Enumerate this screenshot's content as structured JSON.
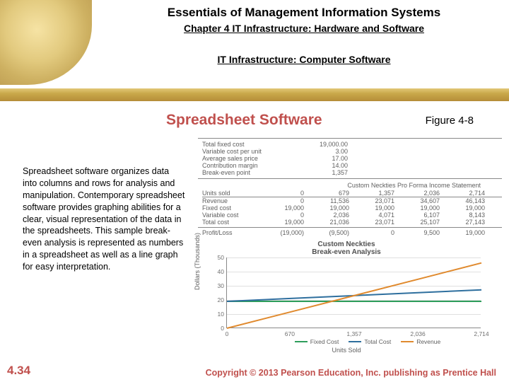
{
  "header": {
    "book_title": "Essentials of Management Information Systems",
    "chapter_line": "Chapter 4 IT Infrastructure: Hardware and Software",
    "section_line": "IT Infrastructure: Computer Software"
  },
  "slide": {
    "title": "Spreadsheet Software",
    "figure_label": "Figure 4-8",
    "body": "Spreadsheet software organizes data into columns and rows for analysis and manipulation. Contemporary spreadsheet software provides graphing abilities for a clear, visual representation of the data in the spreadsheets. This sample break-even analysis is represented as numbers in a spreadsheet as well as a line graph for easy interpretation.",
    "slide_number": "4.34",
    "copyright": "Copyright © 2013 Pearson Education, Inc. publishing as Prentice Hall"
  },
  "spreadsheet": {
    "assumptions": [
      {
        "label": "Total fixed cost",
        "value": "19,000.00"
      },
      {
        "label": "Variable cost per unit",
        "value": "3.00"
      },
      {
        "label": "Average sales price",
        "value": "17.00"
      },
      {
        "label": "Contribution margin",
        "value": "14.00"
      },
      {
        "label": "Break-even point",
        "value": "1,357"
      }
    ],
    "statement_title": "Custom Neckties Pro Forma Income Statement",
    "income_header": {
      "label": "Units sold",
      "cols": [
        "0",
        "679",
        "1,357",
        "2,036",
        "2,714"
      ]
    },
    "income_rows": [
      {
        "label": "Revenue",
        "cols": [
          "0",
          "11,536",
          "23,071",
          "34,607",
          "46,143"
        ]
      },
      {
        "label": "Fixed cost",
        "cols": [
          "19,000",
          "19,000",
          "19,000",
          "19,000",
          "19,000"
        ]
      },
      {
        "label": "Variable cost",
        "cols": [
          "0",
          "2,036",
          "4,071",
          "6,107",
          "8,143"
        ]
      },
      {
        "label": "Total cost",
        "cols": [
          "19,000",
          "21,036",
          "23,071",
          "25,107",
          "27,143"
        ]
      }
    ],
    "profit_row": {
      "label": "Profit/Loss",
      "cols": [
        "(19,000)",
        "(9,500)",
        "0",
        "9,500",
        "19,000"
      ]
    }
  },
  "chart": {
    "type": "line",
    "title": "Custom Neckties\nBreak-even Analysis",
    "xlabel": "Units Sold",
    "ylabel": "Dollars (Thousands)",
    "xlim": [
      0,
      2714
    ],
    "ylim": [
      0,
      50
    ],
    "ytick_step": 10,
    "xticks": [
      0,
      670,
      1357,
      2036,
      2714
    ],
    "xtick_labels": [
      "0",
      "670",
      "1,357",
      "2,036",
      "2,714"
    ],
    "background_color": "#ffffff",
    "grid_color": "#e0e0e0",
    "axis_color": "#888888",
    "line_width": 2,
    "series": [
      {
        "name": "Fixed Cost",
        "color": "#2e9e5b",
        "x": [
          0,
          679,
          1357,
          2036,
          2714
        ],
        "y": [
          19.0,
          19.0,
          19.0,
          19.0,
          19.0
        ]
      },
      {
        "name": "Total Cost",
        "color": "#2e6f9e",
        "x": [
          0,
          679,
          1357,
          2036,
          2714
        ],
        "y": [
          19.0,
          21.036,
          23.071,
          25.107,
          27.143
        ]
      },
      {
        "name": "Revenue",
        "color": "#e08a2e",
        "x": [
          0,
          679,
          1357,
          2036,
          2714
        ],
        "y": [
          0,
          11.536,
          23.071,
          34.607,
          46.143
        ]
      }
    ]
  },
  "colors": {
    "accent": "#c0504d",
    "text_muted": "#606060"
  }
}
